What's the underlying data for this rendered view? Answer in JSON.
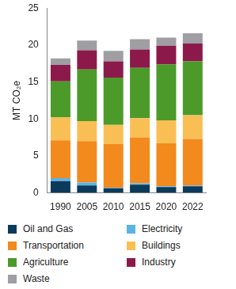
{
  "chart_data": {
    "type": "bar",
    "stacked": true,
    "ylabel": "MT CO₂e",
    "categories": [
      "1990",
      "2005",
      "2010",
      "2015",
      "2020",
      "2022"
    ],
    "series": [
      {
        "name": "Oil and Gas",
        "color": "#0b3a5a",
        "values": [
          1.6,
          1.0,
          0.6,
          1.1,
          0.8,
          0.9
        ]
      },
      {
        "name": "Electricity",
        "color": "#5ab4e5",
        "values": [
          0.4,
          0.4,
          0.1,
          0.2,
          0.1,
          0.1
        ]
      },
      {
        "name": "Transportation",
        "color": "#f28a1e",
        "values": [
          5.1,
          5.6,
          5.9,
          6.2,
          5.8,
          6.3
        ]
      },
      {
        "name": "Buildings",
        "color": "#f9bf55",
        "values": [
          3.1,
          2.7,
          2.6,
          2.6,
          3.1,
          3.2
        ]
      },
      {
        "name": "Agriculture",
        "color": "#4c9a2a",
        "values": [
          4.9,
          7.0,
          6.4,
          6.8,
          7.6,
          7.3
        ]
      },
      {
        "name": "Industry",
        "color": "#8b1a4a",
        "values": [
          2.2,
          2.6,
          2.2,
          2.5,
          2.5,
          2.4
        ]
      },
      {
        "name": "Waste",
        "color": "#9e9ea3",
        "values": [
          0.9,
          1.3,
          1.4,
          1.4,
          1.1,
          1.4
        ]
      }
    ],
    "ylim": [
      0,
      25
    ],
    "yticks": [
      0,
      5,
      10,
      15,
      20,
      25
    ],
    "grid": false,
    "legend": "bottom"
  }
}
